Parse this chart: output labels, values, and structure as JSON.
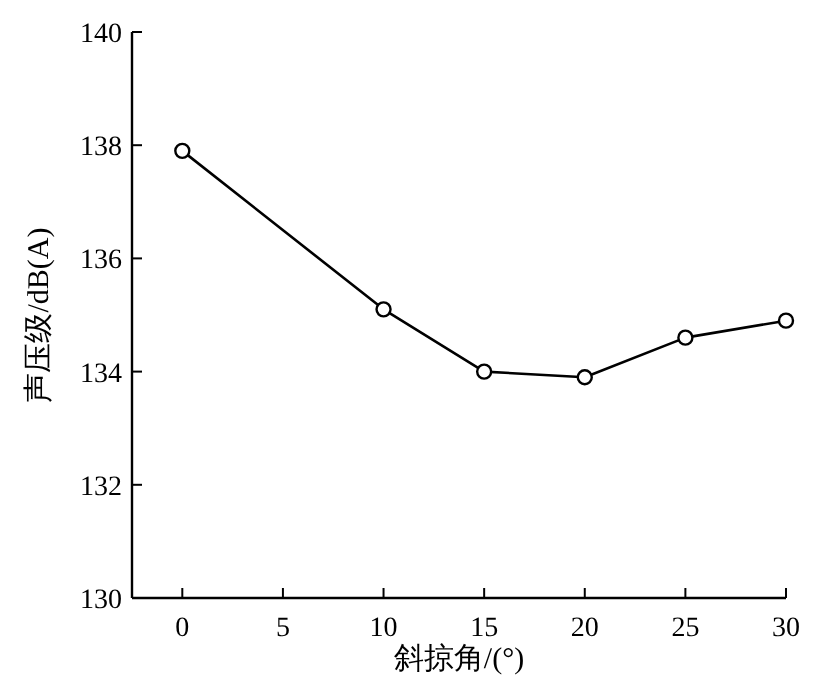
{
  "chart_data": {
    "type": "line",
    "xlabel": "斜掠角/(°)",
    "ylabel": "声压级/dB(A)",
    "x": [
      0,
      10,
      15,
      20,
      25,
      30
    ],
    "series": [
      {
        "color": "#000000",
        "values": [
          137.9,
          135.1,
          134.0,
          133.9,
          134.6,
          134.9
        ]
      }
    ],
    "xlim": [
      -2.5,
      30
    ],
    "xticks": [
      0,
      5,
      10,
      15,
      20,
      25,
      30
    ],
    "ylim": [
      130,
      140
    ],
    "yticks": [
      130,
      132,
      134,
      136,
      138,
      140
    ],
    "marker": "circle",
    "line_style": "solid"
  }
}
